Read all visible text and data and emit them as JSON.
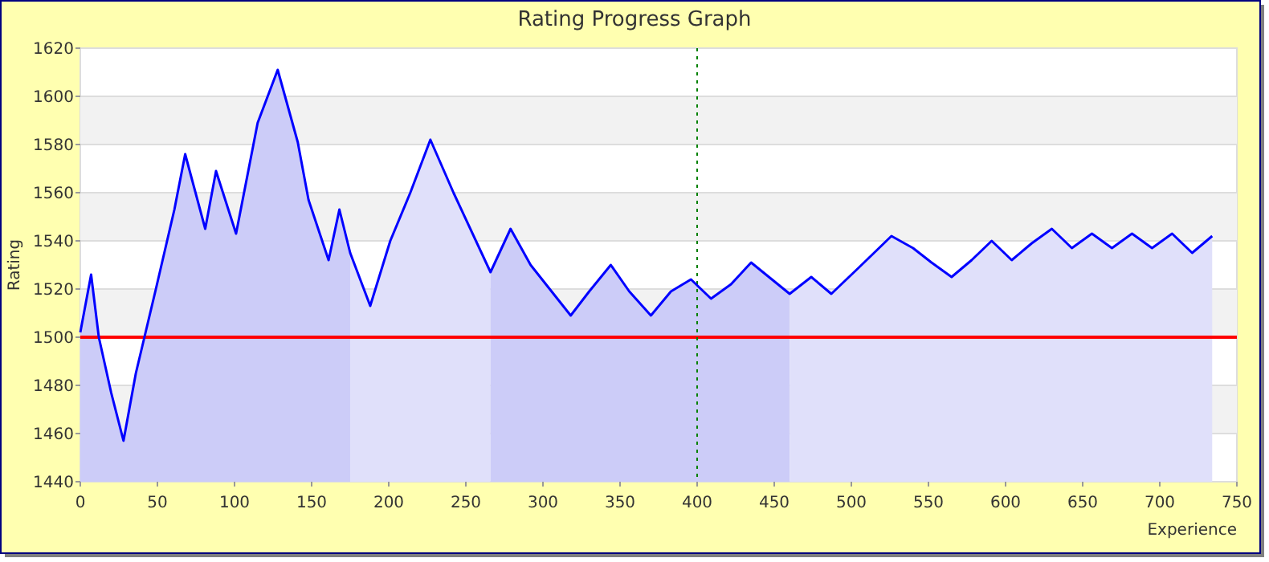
{
  "chart_data": {
    "type": "area",
    "title": "Rating Progress Graph",
    "xlabel": "Experience",
    "ylabel": "Rating",
    "xlim": [
      0,
      750
    ],
    "xticks": [
      0,
      50,
      100,
      150,
      200,
      250,
      300,
      350,
      400,
      450,
      500,
      550,
      600,
      650,
      700,
      750
    ],
    "ylim": [
      1440,
      1620
    ],
    "yticks": [
      1440,
      1460,
      1480,
      1500,
      1520,
      1540,
      1560,
      1580,
      1600,
      1620
    ],
    "grid": "y",
    "series": [
      {
        "type": "area",
        "color": "#ccccf8",
        "x": [
          0,
          7,
          12,
          20,
          28,
          36,
          49,
          61,
          68,
          81,
          88,
          101,
          115,
          128,
          141,
          148,
          161,
          168,
          175
        ],
        "values": [
          1502,
          1526,
          1500,
          1477,
          1457,
          1485,
          1520,
          1553,
          1576,
          1545,
          1569,
          1543,
          1589,
          1611,
          1581,
          1557,
          1532,
          1553,
          1535
        ]
      },
      {
        "type": "area",
        "color": "#e0e0fa",
        "x": [
          175,
          188,
          201,
          214,
          227,
          242,
          266
        ],
        "values": [
          1535,
          1513,
          1540,
          1560,
          1582,
          1560,
          1527
        ]
      },
      {
        "type": "area",
        "color": "#ccccf8",
        "x": [
          266,
          279,
          292,
          318,
          330,
          344,
          356,
          370,
          383,
          396,
          409,
          422,
          435,
          460
        ],
        "values": [
          1527,
          1545,
          1530,
          1509,
          1519,
          1530,
          1519,
          1509,
          1519,
          1524,
          1516,
          1522,
          1531,
          1518
        ]
      },
      {
        "type": "area",
        "color": "#e0e0fa",
        "x": [
          460,
          474,
          487,
          505,
          526,
          540,
          552,
          565,
          578,
          591,
          604,
          617,
          630,
          643,
          656,
          669,
          682,
          695,
          708,
          721,
          734
        ],
        "values": [
          1518,
          1525,
          1518,
          1529,
          1542,
          1537,
          1531,
          1525,
          1532,
          1540,
          1532,
          1539,
          1545,
          1537,
          1543,
          1537,
          1543,
          1537,
          1543,
          1535,
          1542
        ]
      },
      {
        "type": "line",
        "color": "#0000ff",
        "x": [
          0,
          7,
          12,
          20,
          28,
          36,
          49,
          61,
          68,
          81,
          88,
          101,
          115,
          128,
          141,
          148,
          161,
          168,
          175,
          188,
          201,
          214,
          227,
          242,
          266,
          279,
          292,
          318,
          330,
          344,
          356,
          370,
          383,
          396,
          409,
          422,
          435,
          460,
          474,
          487,
          505,
          526,
          540,
          552,
          565,
          578,
          591,
          604,
          617,
          630,
          643,
          656,
          669,
          682,
          695,
          708,
          721,
          734
        ],
        "values": [
          1502,
          1526,
          1500,
          1477,
          1457,
          1485,
          1520,
          1553,
          1576,
          1545,
          1569,
          1543,
          1589,
          1611,
          1581,
          1557,
          1532,
          1553,
          1535,
          1513,
          1540,
          1560,
          1582,
          1560,
          1527,
          1545,
          1530,
          1509,
          1519,
          1530,
          1519,
          1509,
          1519,
          1524,
          1516,
          1522,
          1531,
          1518,
          1525,
          1518,
          1529,
          1542,
          1537,
          1531,
          1525,
          1532,
          1540,
          1532,
          1539,
          1545,
          1537,
          1543,
          1537,
          1543,
          1537,
          1543,
          1535,
          1542
        ]
      }
    ],
    "ref_lines": [
      {
        "axis": "y",
        "value": 1500,
        "color": "#ff0000",
        "line_style": "solid"
      },
      {
        "axis": "x",
        "value": 400,
        "color": "#008000",
        "line_style": "dotted"
      }
    ]
  }
}
